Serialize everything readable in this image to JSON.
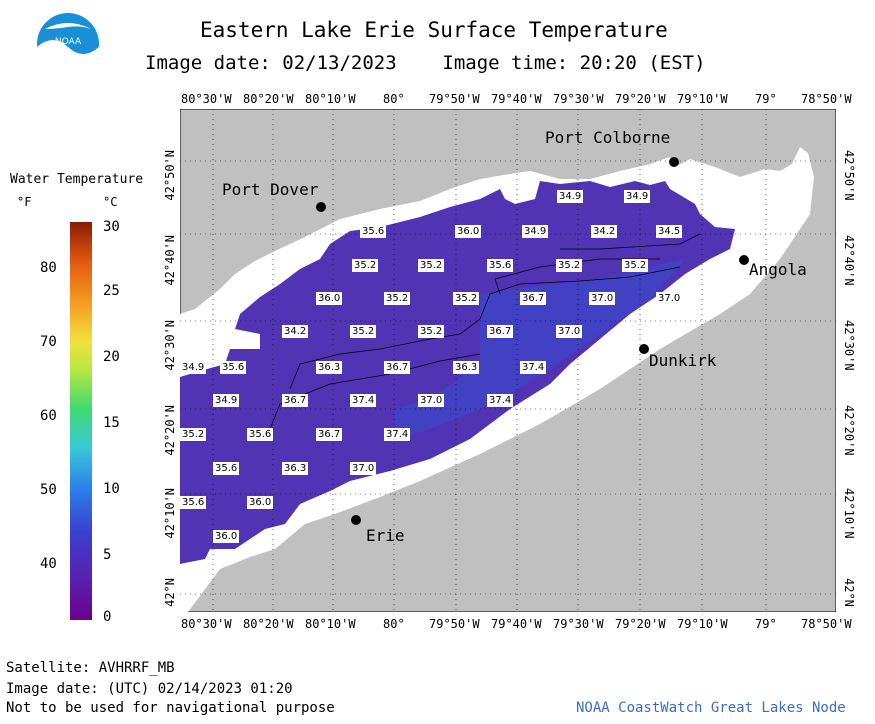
{
  "header": {
    "title": "Eastern Lake Erie Surface Temperature",
    "date_time": "Image date: 02/13/2023    Image time: 20:20 (EST)",
    "logo_text": "NOAA"
  },
  "legend": {
    "title": "Water Temperature",
    "unit_f": "°F",
    "unit_c": "°C",
    "f_labels": [
      "80",
      "70",
      "60",
      "50",
      "40"
    ],
    "c_labels": [
      "30",
      "25",
      "20",
      "15",
      "10",
      "5",
      "0"
    ]
  },
  "axes": {
    "lon_labels": [
      "80°30'W",
      "80°20'W",
      "80°10'W",
      "80°",
      "79°50'W",
      "79°40'W",
      "79°30'W",
      "79°20'W",
      "79°10'W",
      "79°",
      "78°50'W"
    ],
    "lat_labels": [
      "42°50'N",
      "42°40'N",
      "42°30'N",
      "42°20'N",
      "42°10'N",
      "42°N"
    ]
  },
  "places": {
    "port_colborne": "Port Colborne",
    "port_dover": "Port Dover",
    "angola": "Angola",
    "dunkirk": "Dunkirk",
    "erie": "Erie"
  },
  "temperature_labels": {
    "row1": [
      "34.9",
      "34.9"
    ],
    "row2": [
      "35.6",
      "36.0",
      "34.9",
      "34.2",
      "34.5"
    ],
    "row3": [
      "35.2",
      "35.2",
      "35.6",
      "35.2",
      "35.2"
    ],
    "row4": [
      "36.0",
      "35.2",
      "35.2",
      "36.7",
      "37.0",
      "37.0"
    ],
    "row5": [
      "34.2",
      "35.2",
      "35.2",
      "36.7",
      "37.0"
    ],
    "row6": [
      "34.9",
      "35.6",
      "36.3",
      "36.7",
      "36.3",
      "37.4"
    ],
    "row7": [
      "34.9",
      "36.7",
      "37.4",
      "37.0",
      "37.4"
    ],
    "row8": [
      "35.2",
      "35.6",
      "36.7",
      "37.4"
    ],
    "row9": [
      "35.6",
      "36.3",
      "37.0"
    ],
    "row10": [
      "35.6",
      "36.0"
    ],
    "row11": [
      "36.0"
    ]
  },
  "footer": {
    "satellite": "Satellite: AVHRRF_MB",
    "utc_date": "Image date: (UTC) 02/14/2023  01:20",
    "disclaimer": "Not to be used for navigational purpose",
    "credit": "NOAA CoastWatch Great Lakes Node"
  },
  "colors": {
    "land": "#c0c0c0",
    "no_data_water": "#ffffff",
    "cold_water": "#5a32b4",
    "warmer_water": "#4048c8"
  }
}
